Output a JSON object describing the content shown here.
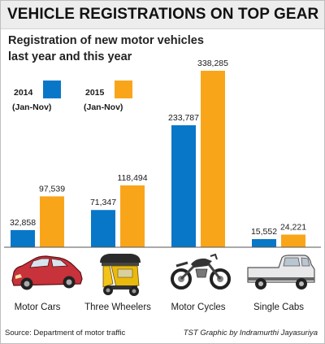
{
  "title": "VEHICLE REGISTRATIONS ON TOP GEAR",
  "subtitle": "Registration of new motor vehicles last year and this year",
  "source": "Source: Department of motor traffic",
  "credit": "TST Graphic by Indramurthi Jayasuriya",
  "colors": {
    "series_2014": "#0877c8",
    "series_2015": "#f9a51a",
    "baseline": "#555555"
  },
  "chart_data": {
    "type": "bar",
    "title": "VEHICLE REGISTRATIONS ON TOP GEAR",
    "subtitle": "Registration of new motor vehicles last year and this year",
    "categories": [
      "Motor Cars",
      "Three Wheelers",
      "Motor Cycles",
      "Single Cabs"
    ],
    "category_icons": [
      "car-icon",
      "three-wheeler-icon",
      "motorcycle-icon",
      "pickup-truck-icon"
    ],
    "series": [
      {
        "name": "2014",
        "period": "(Jan-Nov)",
        "values": [
          32858,
          71347,
          233787,
          15552
        ]
      },
      {
        "name": "2015",
        "period": "(Jan-Nov)",
        "values": [
          97539,
          118494,
          338285,
          24221
        ]
      }
    ],
    "value_labels": [
      [
        "32,858",
        "71,347",
        "233,787",
        "15,552"
      ],
      [
        "97,539",
        "118,494",
        "338,285",
        "24,221"
      ]
    ],
    "ylim": [
      0,
      338285
    ],
    "grid": false,
    "legend": "top-left",
    "xlabel": "",
    "ylabel": ""
  }
}
